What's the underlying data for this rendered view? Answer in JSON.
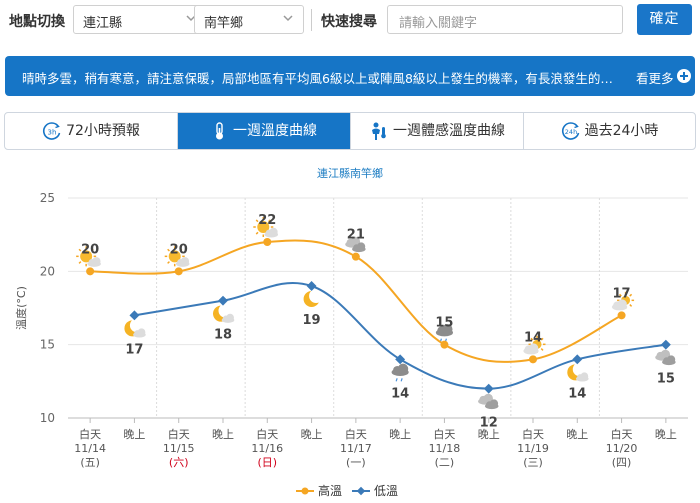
{
  "topbar": {
    "location_label": "地點切換",
    "county_value": "連江縣",
    "township_value": "南竿鄉",
    "search_label": "快速搜尋",
    "search_placeholder": "請輸入關鍵字",
    "confirm_label": "確定"
  },
  "banner": {
    "text": "晴時多雲，稍有寒意，請注意保暖，局部地區有平均風6級以上或陣風8級以上發生的機率，有長浪發生的可能，請注意",
    "more_label": "看更多"
  },
  "tabs": [
    {
      "label": "72小時預報",
      "icon": "3h-clock-icon"
    },
    {
      "label": "一週溫度曲線",
      "icon": "thermometer-icon"
    },
    {
      "label": "一週體感溫度曲線",
      "icon": "person-thermometer-icon"
    },
    {
      "label": "過去24小時",
      "icon": "24h-clock-icon"
    }
  ],
  "colors": {
    "primary": "#1675c6",
    "high_series": "#f5a623",
    "low_series": "#3b7ab8",
    "grid": "#e6e6e6"
  },
  "chart_data": {
    "type": "line",
    "title": "連江縣南竿鄉",
    "ylabel": "溫度(°C)",
    "ylim": [
      10,
      25
    ],
    "yticks": [
      10,
      15,
      20,
      25
    ],
    "categories": [
      {
        "period": "白天",
        "date": "11/14",
        "weekday": "(五)"
      },
      {
        "period": "晚上",
        "date": "",
        "weekday": ""
      },
      {
        "period": "白天",
        "date": "11/15",
        "weekday": "(六)"
      },
      {
        "period": "晚上",
        "date": "",
        "weekday": ""
      },
      {
        "period": "白天",
        "date": "11/16",
        "weekday": "(日)"
      },
      {
        "period": "晚上",
        "date": "",
        "weekday": ""
      },
      {
        "period": "白天",
        "date": "11/17",
        "weekday": "(一)"
      },
      {
        "period": "晚上",
        "date": "",
        "weekday": ""
      },
      {
        "period": "白天",
        "date": "11/18",
        "weekday": "(二)"
      },
      {
        "period": "晚上",
        "date": "",
        "weekday": ""
      },
      {
        "period": "白天",
        "date": "11/19",
        "weekday": "(三)"
      },
      {
        "period": "晚上",
        "date": "",
        "weekday": ""
      },
      {
        "period": "白天",
        "date": "11/20",
        "weekday": "(四)"
      },
      {
        "period": "晚上",
        "date": "",
        "weekday": ""
      }
    ],
    "series": [
      {
        "name": "高溫",
        "points": [
          [
            0,
            20
          ],
          [
            2,
            20
          ],
          [
            4,
            22
          ],
          [
            6,
            21
          ],
          [
            8,
            15
          ],
          [
            10,
            14
          ],
          [
            12,
            17
          ]
        ]
      },
      {
        "name": "低溫",
        "points": [
          [
            1,
            17
          ],
          [
            3,
            18
          ],
          [
            5,
            19
          ],
          [
            7,
            14
          ],
          [
            9,
            12
          ],
          [
            11,
            14
          ],
          [
            13,
            15
          ]
        ]
      }
    ],
    "weather_icons": [
      {
        "index": 0,
        "icon": "sunny-cloud-icon"
      },
      {
        "index": 1,
        "icon": "moon-cloud-icon"
      },
      {
        "index": 2,
        "icon": "sunny-cloud-icon"
      },
      {
        "index": 3,
        "icon": "moon-cloud-icon"
      },
      {
        "index": 4,
        "icon": "sunny-cloud-icon"
      },
      {
        "index": 5,
        "icon": "moon-icon"
      },
      {
        "index": 6,
        "icon": "cloudy-icon"
      },
      {
        "index": 7,
        "icon": "rain-cloud-icon"
      },
      {
        "index": 8,
        "icon": "rain-cloud-icon"
      },
      {
        "index": 9,
        "icon": "cloudy-icon"
      },
      {
        "index": 10,
        "icon": "partly-sunny-icon"
      },
      {
        "index": 11,
        "icon": "moon-cloud-icon"
      },
      {
        "index": 12,
        "icon": "partly-sunny-icon"
      },
      {
        "index": 13,
        "icon": "cloudy-icon"
      }
    ],
    "legend": {
      "position": "bottom",
      "items": [
        "高溫",
        "低溫"
      ]
    },
    "grid": "horizontal",
    "holiday_weekdays_color": "#d0021b"
  }
}
